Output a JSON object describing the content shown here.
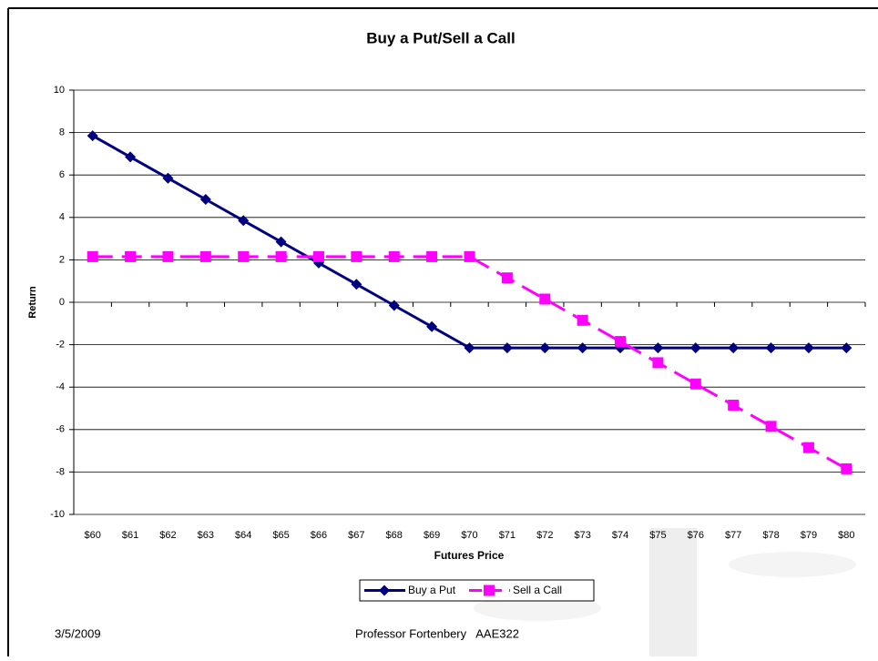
{
  "chart_data": {
    "type": "line",
    "title": "Buy a Put/Sell a Call",
    "x_label": "Futures Price",
    "y_label": "Return",
    "categories": [
      "$60",
      "$61",
      "$62",
      "$63",
      "$64",
      "$65",
      "$66",
      "$67",
      "$68",
      "$69",
      "$70",
      "$71",
      "$72",
      "$73",
      "$74",
      "$75",
      "$76",
      "$77",
      "$78",
      "$79",
      "$80"
    ],
    "series": [
      {
        "name": "Buy a Put",
        "color": "#000080",
        "marker": "diamond",
        "dashed": false,
        "values": [
          7.85,
          6.85,
          5.85,
          4.85,
          3.85,
          2.85,
          1.85,
          0.85,
          -0.15,
          -1.15,
          -2.15,
          -2.15,
          -2.15,
          -2.15,
          -2.15,
          -2.15,
          -2.15,
          -2.15,
          -2.15,
          -2.15,
          -2.15
        ]
      },
      {
        "name": "Sell a Call",
        "color": "#ff00ff",
        "marker": "square",
        "dashed": true,
        "values": [
          2.15,
          2.15,
          2.15,
          2.15,
          2.15,
          2.15,
          2.15,
          2.15,
          2.15,
          2.15,
          2.15,
          1.15,
          0.15,
          -0.85,
          -1.85,
          -2.85,
          -3.85,
          -4.85,
          -5.85,
          -6.85,
          -7.85
        ]
      }
    ],
    "ylim": [
      -10,
      10
    ],
    "yticks": [
      -10,
      -8,
      -6,
      -4,
      -2,
      0,
      2,
      4,
      6,
      8,
      10
    ],
    "grid": true,
    "legend": "bottom"
  },
  "footer": {
    "date": "3/5/2009",
    "text": "Professor Fortenbery   AAE322"
  }
}
